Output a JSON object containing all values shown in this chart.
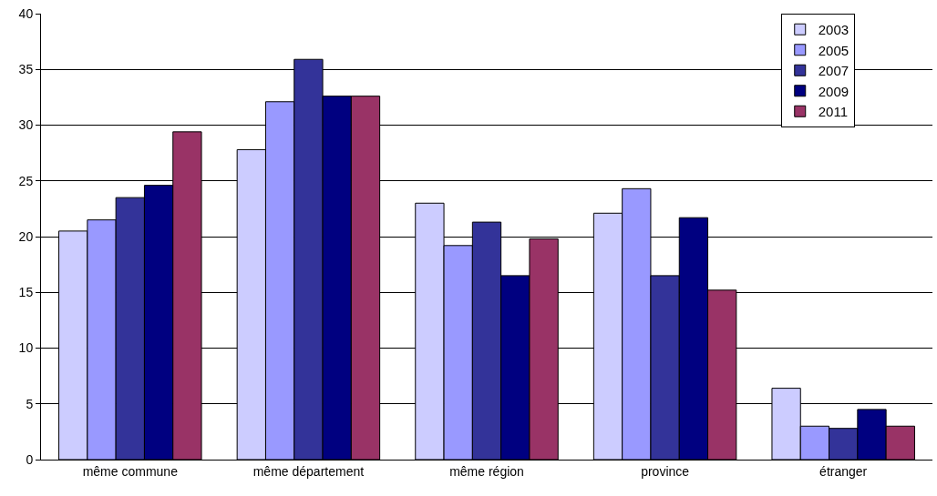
{
  "chart_data": {
    "type": "bar",
    "categories": [
      "même commune",
      "même département",
      "même région",
      "province",
      "étranger"
    ],
    "series": [
      {
        "name": "2003",
        "color": "#ccccff",
        "values": [
          20.5,
          27.8,
          23.0,
          22.1,
          6.4
        ]
      },
      {
        "name": "2005",
        "color": "#9999ff",
        "values": [
          21.5,
          32.1,
          19.2,
          24.3,
          3.0
        ]
      },
      {
        "name": "2007",
        "color": "#333399",
        "values": [
          23.5,
          35.9,
          21.3,
          16.5,
          2.8
        ]
      },
      {
        "name": "2009",
        "color": "#000080",
        "values": [
          24.6,
          32.6,
          16.5,
          21.7,
          4.5
        ]
      },
      {
        "name": "2011",
        "color": "#993366",
        "values": [
          29.4,
          32.6,
          19.8,
          15.2,
          3.0
        ]
      }
    ],
    "ylim": [
      0,
      40
    ],
    "yticks": [
      0,
      5,
      10,
      15,
      20,
      25,
      30,
      35,
      40
    ],
    "grid": "y",
    "legend": "top right"
  }
}
